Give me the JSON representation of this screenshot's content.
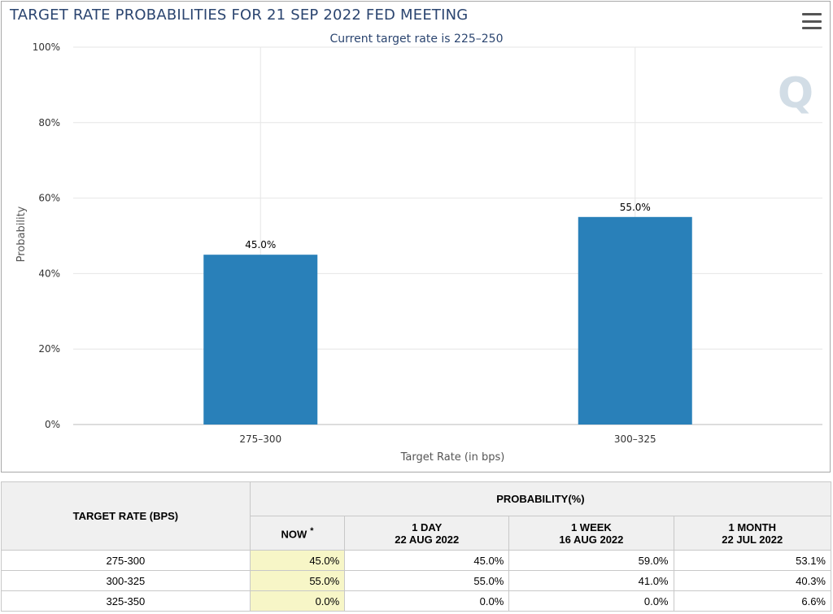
{
  "chart": {
    "title": "TARGET RATE PROBABILITIES FOR 21 SEP 2022 FED MEETING",
    "subtitle": "Current target rate is 225–250",
    "menu_icon": "hamburger-menu-icon",
    "watermark": "Q",
    "bar_color": "#2980b9"
  },
  "chart_data": {
    "type": "bar",
    "title": "TARGET RATE PROBABILITIES FOR 21 SEP 2022 FED MEETING",
    "subtitle": "Current target rate is 225–250",
    "categories": [
      "275–300",
      "300–325"
    ],
    "values": [
      45.0,
      55.0
    ],
    "data_labels": [
      "45.0%",
      "55.0%"
    ],
    "xlabel": "Target Rate (in bps)",
    "ylabel": "Probability",
    "ylim": [
      0,
      100
    ],
    "yticks": [
      "0%",
      "20%",
      "40%",
      "60%",
      "80%",
      "100%"
    ],
    "grid": true,
    "legend": "none"
  },
  "table": {
    "target_rate_header": "TARGET RATE (BPS)",
    "probability_header": "PROBABILITY(%)",
    "columns": [
      {
        "line1": "NOW",
        "line2": "",
        "marker": "*"
      },
      {
        "line1": "1 DAY",
        "line2": "22 AUG 2022",
        "marker": ""
      },
      {
        "line1": "1 WEEK",
        "line2": "16 AUG 2022",
        "marker": ""
      },
      {
        "line1": "1 MONTH",
        "line2": "22 JUL 2022",
        "marker": ""
      }
    ],
    "rows": [
      {
        "rate": "275-300",
        "values": [
          "45.0%",
          "45.0%",
          "59.0%",
          "53.1%"
        ]
      },
      {
        "rate": "300-325",
        "values": [
          "55.0%",
          "55.0%",
          "41.0%",
          "40.3%"
        ]
      },
      {
        "rate": "325-350",
        "values": [
          "0.0%",
          "0.0%",
          "0.0%",
          "6.6%"
        ]
      }
    ]
  }
}
